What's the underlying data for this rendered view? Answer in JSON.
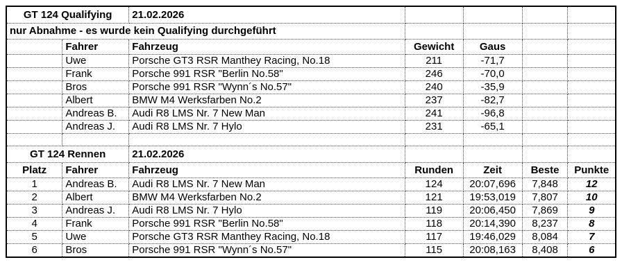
{
  "colors": {
    "background": "#ffffff",
    "text": "#000000",
    "outer_border": "#000000",
    "gridline": "#4d4d4d"
  },
  "qualifying": {
    "title": "GT 124 Qualifying",
    "date": "21.02.2026",
    "note": "nur Abnahme - es wurde kein Qualifying durchgeführt",
    "headers": {
      "fahrer": "Fahrer",
      "fahrzeug": "Fahrzeug",
      "gewicht": "Gewicht",
      "gaus": "Gaus"
    },
    "rows": [
      {
        "fahrer": "Uwe",
        "fahrzeug": "Porsche GT3 RSR Manthey Racing, No.18",
        "gewicht": "211",
        "gaus": "-71,7"
      },
      {
        "fahrer": "Frank",
        "fahrzeug": "Porsche 991 RSR \"Berlin No.58\"",
        "gewicht": "246",
        "gaus": "-70,0"
      },
      {
        "fahrer": "Bros",
        "fahrzeug": "Porsche 991 RSR  \"Wynn´s No.57\"",
        "gewicht": "240",
        "gaus": "-35,9"
      },
      {
        "fahrer": "Albert",
        "fahrzeug": "BMW M4 Werksfarben No.2",
        "gewicht": "237",
        "gaus": "-82,7"
      },
      {
        "fahrer": "Andreas B.",
        "fahrzeug": "Audi R8 LMS Nr. 7 New Man",
        "gewicht": "241",
        "gaus": "-96,8"
      },
      {
        "fahrer": "Andreas J.",
        "fahrzeug": "Audi R8 LMS Nr. 7 Hylo",
        "gewicht": "231",
        "gaus": "-65,1"
      }
    ]
  },
  "rennen": {
    "title": "GT 124 Rennen",
    "date": "21.02.2026",
    "headers": {
      "platz": "Platz",
      "fahrer": "Fahrer",
      "fahrzeug": "Fahrzeug",
      "runden": "Runden",
      "zeit": "Zeit",
      "beste": "Beste",
      "punkte": "Punkte"
    },
    "rows": [
      {
        "platz": "1",
        "fahrer": "Andreas B.",
        "fahrzeug": "Audi R8 LMS Nr. 7 New Man",
        "runden": "124",
        "zeit": "20:07,696",
        "beste": "7,848",
        "punkte": "12"
      },
      {
        "platz": "2",
        "fahrer": "Albert",
        "fahrzeug": "BMW M4 Werksfarben No.2",
        "runden": "121",
        "zeit": "19:53,019",
        "beste": "7,807",
        "punkte": "10"
      },
      {
        "platz": "3",
        "fahrer": "Andreas J.",
        "fahrzeug": "Audi R8 LMS Nr. 7 Hylo",
        "runden": "119",
        "zeit": "20:06,450",
        "beste": "7,869",
        "punkte": "9"
      },
      {
        "platz": "4",
        "fahrer": "Frank",
        "fahrzeug": "Porsche 991 RSR \"Berlin No.58\"",
        "runden": "118",
        "zeit": "20:14,390",
        "beste": "8,237",
        "punkte": "8"
      },
      {
        "platz": "5",
        "fahrer": "Uwe",
        "fahrzeug": "Porsche GT3 RSR Manthey Racing, No.18",
        "runden": "117",
        "zeit": "19:46,029",
        "beste": "8,084",
        "punkte": "7"
      },
      {
        "platz": "6",
        "fahrer": "Bros",
        "fahrzeug": "Porsche 991 RSR  \"Wynn´s No.57\"",
        "runden": "115",
        "zeit": "20:08,163",
        "beste": "8,408",
        "punkte": "6"
      }
    ]
  }
}
